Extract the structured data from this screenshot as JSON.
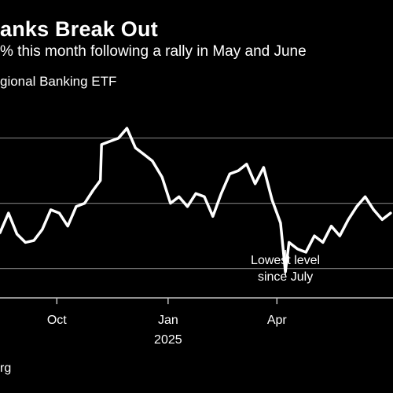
{
  "title": "anks Break Out",
  "subtitle": "% this month following a rally in May and June",
  "legend_label": "gional Banking ETF",
  "source": "rg",
  "chart_data": {
    "type": "line",
    "title": "anks Break Out",
    "subtitle": "% this month following a rally in May and June",
    "series": [
      {
        "name": "gional Banking ETF",
        "color": "#ffffff",
        "x": [
          "2024-08-15",
          "2024-08-22",
          "2024-08-29",
          "2024-09-05",
          "2024-09-12",
          "2024-09-19",
          "2024-09-26",
          "2024-10-03",
          "2024-10-10",
          "2024-10-17",
          "2024-10-24",
          "2024-10-31",
          "2024-11-06",
          "2024-11-07",
          "2024-11-14",
          "2024-11-21",
          "2024-11-28",
          "2024-12-05",
          "2024-12-12",
          "2024-12-19",
          "2024-12-27",
          "2025-01-03",
          "2025-01-10",
          "2025-01-17",
          "2025-01-24",
          "2025-01-31",
          "2025-02-07",
          "2025-02-14",
          "2025-02-21",
          "2025-02-28",
          "2025-03-07",
          "2025-03-14",
          "2025-03-21",
          "2025-03-28",
          "2025-04-04",
          "2025-04-08",
          "2025-04-11",
          "2025-04-18",
          "2025-04-25",
          "2025-05-02",
          "2025-05-09",
          "2025-05-16",
          "2025-05-23",
          "2025-05-30",
          "2025-06-06",
          "2025-06-13",
          "2025-06-20",
          "2025-06-27",
          "2025-07-04"
        ],
        "y": [
          50.5,
          53.5,
          50.3,
          49.0,
          49.3,
          51.0,
          54.0,
          53.5,
          51.5,
          54.5,
          55.0,
          57.0,
          58.5,
          64.0,
          64.5,
          65.0,
          66.5,
          63.5,
          62.5,
          61.5,
          59.0,
          55.0,
          56.0,
          54.5,
          56.5,
          56.0,
          53.0,
          56.5,
          59.5,
          60.0,
          61.0,
          58.0,
          60.5,
          55.5,
          52.0,
          44.5,
          49.0,
          48.0,
          47.5,
          50.0,
          49.0,
          51.5,
          50.0,
          52.5,
          54.5,
          56.0,
          54.0,
          52.5,
          53.5
        ]
      }
    ],
    "xticks": [
      "Oct",
      "Jan",
      "Apr"
    ],
    "xticks_year": [
      "",
      "2025",
      ""
    ],
    "xticks_pos": [
      "2024-10-01",
      "2025-01-01",
      "2025-04-01"
    ],
    "ylim": [
      40.5,
      70.5
    ],
    "gridlines": [
      45,
      55,
      65
    ],
    "grid": true,
    "annotation": {
      "text": [
        "Lowest level",
        "since July"
      ],
      "x": "2025-04-08",
      "y": 44.5
    },
    "xlim": [
      "2024-08-15",
      "2025-07-06"
    ]
  }
}
